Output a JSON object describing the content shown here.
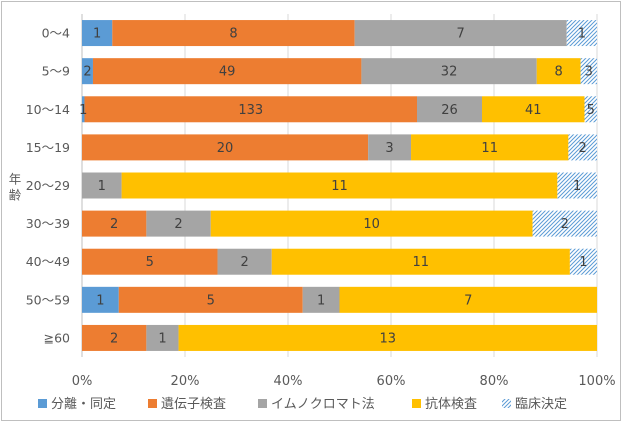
{
  "chart_data": {
    "type": "bar",
    "orientation": "horizontal",
    "stacked": "percent",
    "ylabel": "年齢",
    "xlim": [
      0,
      100
    ],
    "x_ticks": [
      "0%",
      "20%",
      "40%",
      "60%",
      "80%",
      "100%"
    ],
    "grid": "vertical",
    "legend_position": "bottom",
    "categories": [
      "0～4",
      "5～9",
      "10～14",
      "15～19",
      "20～29",
      "30～39",
      "40～49",
      "50～59",
      "≧60"
    ],
    "series": [
      {
        "name": "分離・同定",
        "color": "#5b9bd5",
        "pattern": false,
        "values": [
          1,
          2,
          1,
          0,
          0,
          0,
          0,
          1,
          0
        ]
      },
      {
        "name": "遺伝子検査",
        "color": "#ed7d31",
        "pattern": false,
        "values": [
          8,
          49,
          133,
          20,
          0,
          2,
          5,
          5,
          2
        ]
      },
      {
        "name": "イムノクロマト法",
        "color": "#a5a5a5",
        "pattern": false,
        "values": [
          7,
          32,
          26,
          3,
          1,
          2,
          2,
          1,
          1
        ]
      },
      {
        "name": "抗体検査",
        "color": "#ffc000",
        "pattern": false,
        "values": [
          0,
          8,
          41,
          11,
          11,
          10,
          11,
          7,
          13
        ]
      },
      {
        "name": "臨床決定",
        "color": "#5b9bd5",
        "pattern": true,
        "values": [
          1,
          3,
          5,
          2,
          1,
          2,
          1,
          0,
          0
        ]
      }
    ]
  }
}
